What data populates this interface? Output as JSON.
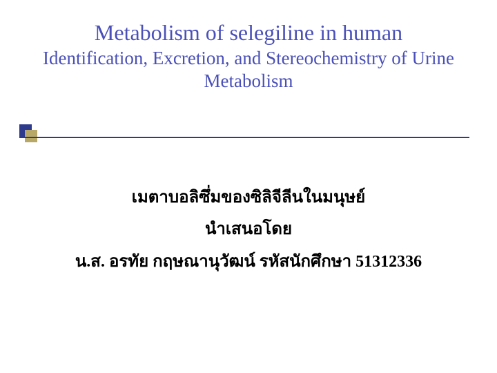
{
  "title": {
    "main": "Metabolism of selegiline  in human",
    "sub": "Identification, Excretion, and Stereochemistry of Urine Metabolism",
    "color": "#4a50b8",
    "main_fontsize": 32,
    "sub_fontsize": 27
  },
  "accent": {
    "dark_color": "#2e3a8c",
    "light_color": "#b8a868",
    "underline_color": "#2e3a8c"
  },
  "body": {
    "lines": [
      "เมตาบอลิซึ่มของซิลิจีลีนในมนุษย์",
      "นำเสนอโดย",
      "น.ส. อรทัย กฤษณานุวัฒน์ รหัสนักศึกษา 51312336"
    ],
    "color": "#000000",
    "fontsize": 24,
    "fontweight": "bold"
  },
  "background_color": "#ffffff"
}
